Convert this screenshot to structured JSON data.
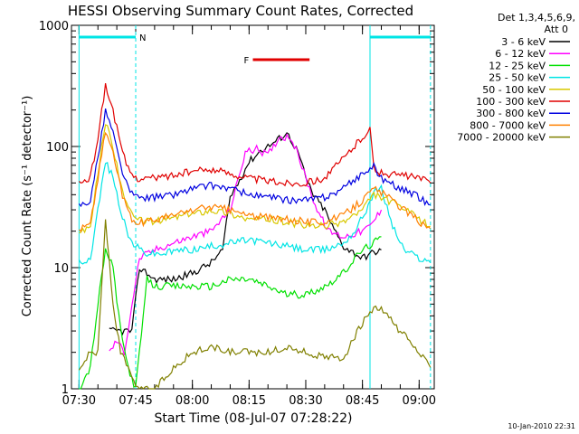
{
  "chart_data": {
    "type": "line",
    "title": "HESSI Observing Summary Count Rates, Corrected",
    "xlabel": "Start Time (08-Jul-07 07:28:22)",
    "ylabel": "Corrected Count Rate (s⁻¹ detector⁻¹)",
    "yscale": "log",
    "xlim": [
      "07:28",
      "09:04"
    ],
    "ylim": [
      1,
      1000
    ],
    "xticks": [
      "07:30",
      "07:45",
      "08:00",
      "08:15",
      "08:30",
      "08:45",
      "09:00"
    ],
    "yticks": [
      1,
      10,
      100,
      1000
    ],
    "legend": {
      "header": [
        "Det 1,3,4,5,6,9,",
        "Att 0"
      ],
      "placement": "right"
    },
    "annotation_date": "10-Jan-2010 22:31",
    "bars": [
      {
        "label": "N",
        "from": "07:30",
        "to": "07:45",
        "color": "#00e5e5",
        "level_y": 800
      },
      {
        "label": "F",
        "from": "08:16",
        "to": "08:31",
        "color": "#e00000",
        "level_y": 520
      },
      {
        "label": "",
        "from": "08:47",
        "to": "09:03",
        "color": "#00e5e5",
        "level_y": 800
      }
    ],
    "series": [
      {
        "name": "3 - 6 keV",
        "color": "#000000",
        "x": [
          "07:38",
          "07:40",
          "07:42",
          "07:44",
          "07:46",
          "07:48",
          "07:50",
          "07:55",
          "08:00",
          "08:05",
          "08:08",
          "08:10",
          "08:15",
          "08:18",
          "08:22",
          "08:25",
          "08:28",
          "08:30",
          "08:32",
          "08:35",
          "08:37",
          "08:40",
          "08:45",
          "08:47",
          "08:50"
        ],
        "y": [
          3,
          3,
          3,
          3,
          10,
          9,
          8,
          8,
          9,
          11,
          14,
          38,
          75,
          92,
          110,
          130,
          90,
          55,
          40,
          30,
          22,
          15,
          12,
          13,
          14
        ]
      },
      {
        "name": "6 - 12 keV",
        "color": "#ff00ff",
        "x": [
          "07:38",
          "07:40",
          "07:42",
          "07:46",
          "07:50",
          "07:55",
          "08:00",
          "08:05",
          "08:10",
          "08:14",
          "08:17",
          "08:20",
          "08:23",
          "08:26",
          "08:28",
          "08:30",
          "08:33",
          "08:36",
          "08:40",
          "08:45",
          "08:47",
          "08:50"
        ],
        "y": [
          2,
          2.5,
          2,
          12,
          14,
          16,
          18,
          20,
          30,
          90,
          95,
          85,
          120,
          120,
          85,
          55,
          30,
          20,
          18,
          20,
          22,
          30
        ]
      },
      {
        "name": "12 - 25 keV",
        "color": "#00e000",
        "x": [
          "07:30",
          "07:33",
          "07:35",
          "07:37",
          "07:39",
          "07:41",
          "07:43",
          "07:45",
          "07:48",
          "07:50",
          "07:55",
          "08:00",
          "08:05",
          "08:10",
          "08:15",
          "08:20",
          "08:25",
          "08:30",
          "08:35",
          "08:40",
          "08:43",
          "08:45",
          "08:48",
          "08:50"
        ],
        "y": [
          1,
          1.5,
          5,
          14,
          10,
          3,
          1.5,
          1,
          8,
          7,
          7,
          7,
          7,
          8,
          8,
          7,
          6,
          6,
          7,
          9,
          12,
          14,
          16,
          18
        ]
      },
      {
        "name": "25 - 50 keV",
        "color": "#00e5e5",
        "x": [
          "07:30",
          "07:33",
          "07:35",
          "07:37",
          "07:39",
          "07:41",
          "07:43",
          "07:45",
          "07:48",
          "07:52",
          "07:57",
          "08:00",
          "08:05",
          "08:10",
          "08:15",
          "08:20",
          "08:25",
          "08:30",
          "08:35",
          "08:40",
          "08:43",
          "08:46",
          "08:48",
          "08:50",
          "08:53",
          "08:56",
          "09:00",
          "09:03"
        ],
        "y": [
          11,
          12,
          30,
          75,
          55,
          30,
          18,
          15,
          13,
          13,
          14,
          14,
          15,
          16,
          17,
          16,
          15,
          14,
          14,
          16,
          20,
          30,
          42,
          45,
          22,
          14,
          12,
          11
        ]
      },
      {
        "name": "50 - 100 keV",
        "color": "#d8c800",
        "x": [
          "07:30",
          "07:33",
          "07:35",
          "07:37",
          "07:39",
          "07:41",
          "07:43",
          "07:45",
          "07:50",
          "07:55",
          "08:00",
          "08:05",
          "08:10",
          "08:15",
          "08:20",
          "08:25",
          "08:30",
          "08:35",
          "08:40",
          "08:45",
          "08:48",
          "08:50",
          "08:55",
          "09:00",
          "09:03"
        ],
        "y": [
          20,
          22,
          60,
          160,
          100,
          50,
          30,
          25,
          24,
          26,
          28,
          30,
          28,
          25,
          25,
          24,
          22,
          22,
          24,
          30,
          40,
          38,
          32,
          25,
          22
        ]
      },
      {
        "name": "100 - 300 keV",
        "color": "#e00000",
        "x": [
          "07:30",
          "07:33",
          "07:35",
          "07:37",
          "07:39",
          "07:41",
          "07:43",
          "07:45",
          "07:50",
          "07:55",
          "08:00",
          "08:05",
          "08:10",
          "08:15",
          "08:20",
          "08:25",
          "08:30",
          "08:35",
          "08:40",
          "08:45",
          "08:47",
          "08:48",
          "08:50",
          "08:55",
          "09:00",
          "09:03"
        ],
        "y": [
          50,
          55,
          120,
          320,
          200,
          100,
          65,
          55,
          55,
          58,
          62,
          65,
          60,
          55,
          52,
          50,
          50,
          55,
          80,
          120,
          140,
          65,
          60,
          58,
          55,
          50
        ]
      },
      {
        "name": "300 - 800 keV",
        "color": "#0000e0",
        "x": [
          "07:30",
          "07:33",
          "07:35",
          "07:37",
          "07:39",
          "07:41",
          "07:43",
          "07:45",
          "07:50",
          "07:55",
          "08:00",
          "08:05",
          "08:10",
          "08:15",
          "08:20",
          "08:25",
          "08:30",
          "08:35",
          "08:40",
          "08:45",
          "08:48",
          "08:50",
          "08:55",
          "09:00",
          "09:03"
        ],
        "y": [
          33,
          36,
          80,
          200,
          130,
          70,
          45,
          38,
          38,
          40,
          45,
          48,
          45,
          40,
          38,
          36,
          36,
          38,
          45,
          60,
          68,
          55,
          45,
          38,
          33
        ]
      },
      {
        "name": "800 - 7000 keV",
        "color": "#ff8000",
        "x": [
          "07:30",
          "07:33",
          "07:35",
          "07:37",
          "07:39",
          "07:41",
          "07:43",
          "07:45",
          "07:50",
          "07:55",
          "08:00",
          "08:05",
          "08:10",
          "08:15",
          "08:20",
          "08:25",
          "08:30",
          "08:35",
          "08:40",
          "08:45",
          "08:48",
          "08:50",
          "08:55",
          "09:00",
          "09:03"
        ],
        "y": [
          21,
          23,
          55,
          135,
          90,
          45,
          28,
          23,
          25,
          27,
          30,
          32,
          30,
          27,
          26,
          25,
          24,
          24,
          27,
          36,
          45,
          42,
          32,
          24,
          21
        ]
      },
      {
        "name": "7000 - 20000 keV",
        "color": "#808000",
        "x": [
          "07:30",
          "07:33",
          "07:35",
          "07:37",
          "07:39",
          "07:41",
          "07:43",
          "07:45",
          "07:50",
          "07:55",
          "08:00",
          "08:05",
          "08:10",
          "08:15",
          "08:20",
          "08:25",
          "08:30",
          "08:35",
          "08:40",
          "08:45",
          "08:48",
          "08:50",
          "08:55",
          "09:00",
          "09:03"
        ],
        "y": [
          1.5,
          2,
          2,
          25,
          5,
          2,
          1.5,
          1,
          1,
          1.5,
          2,
          2.2,
          2,
          2,
          2,
          2.2,
          2,
          1.8,
          1.8,
          3.5,
          4.5,
          4.5,
          3,
          2,
          1.5
        ]
      }
    ]
  }
}
